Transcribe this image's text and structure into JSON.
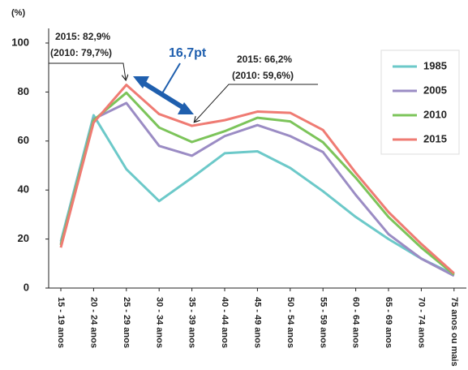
{
  "chart_data": {
    "type": "line",
    "y_label": "(%)",
    "categories": [
      "15 - 19 anos",
      "20 - 24 anos",
      "25 - 29 anos",
      "30 - 34 anos",
      "35 - 39 anos",
      "40 - 44 anos",
      "45 - 49 anos",
      "50 - 54 anos",
      "55 - 59 anos",
      "60 - 64 anos",
      "65 - 69 anos",
      "70 - 74 anos",
      "75 anos ou mais"
    ],
    "series": [
      {
        "name": "1985",
        "color": "#6cc9c9",
        "values": [
          19,
          70.5,
          48.5,
          35.5,
          45,
          55,
          55.8,
          49,
          39.5,
          29,
          20,
          12,
          5.5
        ]
      },
      {
        "name": "2005",
        "color": "#9b8cc4",
        "values": [
          18,
          69,
          75.5,
          58,
          54,
          62,
          66.5,
          62,
          55.5,
          38,
          22,
          12,
          5
        ]
      },
      {
        "name": "2010",
        "color": "#7cc45a",
        "values": [
          17.5,
          68.5,
          79.7,
          65.5,
          59.6,
          64,
          69.5,
          68,
          59.5,
          45,
          29,
          16.5,
          5.5
        ]
      },
      {
        "name": "2015",
        "color": "#ef7b73",
        "values": [
          16.5,
          67.5,
          82.9,
          71,
          66.2,
          68.5,
          72,
          71.5,
          64.5,
          47,
          31,
          18,
          6
        ]
      }
    ],
    "annotations": [
      "2015: 82,9%",
      "(2010: 79,7%)",
      "16,7pt",
      "2015: 66,2%",
      "(2010: 59,6%)"
    ],
    "ylim": [
      0,
      100
    ],
    "yticks": [
      0,
      20,
      40,
      60,
      80,
      100
    ],
    "grid": false,
    "legend": "upper right"
  }
}
